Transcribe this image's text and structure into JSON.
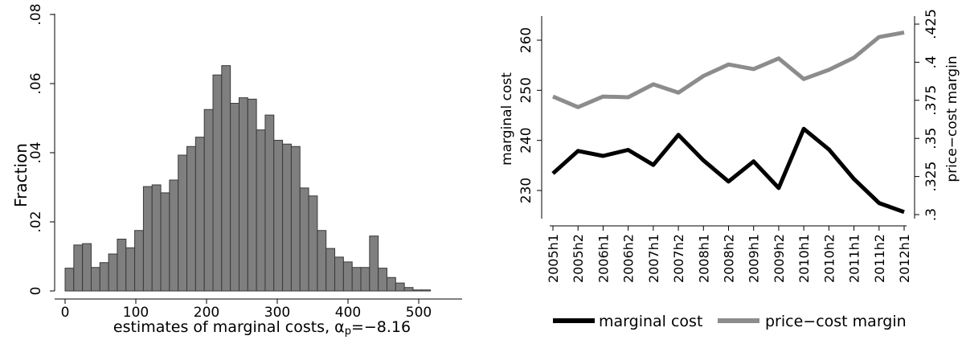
{
  "chart_data": [
    {
      "type": "bar",
      "ylabel": "Fraction",
      "xlabel": "estimates of marginal costs, α",
      "xlabel_subscript": "p",
      "xlabel_suffix": "=−8.16",
      "xlim": [
        -10,
        545
      ],
      "ylim": [
        0,
        0.08
      ],
      "xticks": [
        "0",
        "100",
        "200",
        "300",
        "400",
        "500"
      ],
      "yticks": [
        "0",
        ".02",
        ".04",
        ".06",
        ".08"
      ],
      "bin_width": 12.3,
      "bin_start": 0,
      "values": [
        0.0066,
        0.0133,
        0.0137,
        0.0068,
        0.0082,
        0.0107,
        0.015,
        0.0125,
        0.0175,
        0.0302,
        0.0307,
        0.0284,
        0.0321,
        0.0393,
        0.0418,
        0.0445,
        0.0525,
        0.0625,
        0.0652,
        0.0543,
        0.0559,
        0.0555,
        0.0466,
        0.0509,
        0.0436,
        0.0425,
        0.0418,
        0.0298,
        0.0275,
        0.0175,
        0.0123,
        0.0098,
        0.0084,
        0.0068,
        0.0068,
        0.0159,
        0.0066,
        0.0039,
        0.0023,
        0.001,
        0.0003,
        0.0003,
        0.0,
        0.0
      ]
    },
    {
      "type": "line",
      "categories": [
        "2005h1",
        "2005h2",
        "2006h1",
        "2006h2",
        "2007h1",
        "2007h2",
        "2008h1",
        "2008h2",
        "2009h1",
        "2009h2",
        "2010h1",
        "2010h2",
        "2011h1",
        "2011h2",
        "2012h1"
      ],
      "left_ylabel": "marginal cost",
      "right_ylabel": "price−cost margin",
      "left_ylim": [
        224,
        261.5
      ],
      "right_ylim": [
        0.2965,
        0.428
      ],
      "left_yticks": [
        "230",
        "240",
        "250",
        "260"
      ],
      "right_yticks": [
        ".3",
        ".325",
        ".35",
        ".375",
        ".4",
        ".425"
      ],
      "series": [
        {
          "name": "marginal cost",
          "axis": "left",
          "color": "#000000",
          "values": [
            233.4,
            237.9,
            236.9,
            238.1,
            235.1,
            241.1,
            236.0,
            231.8,
            235.8,
            230.5,
            242.3,
            238.2,
            232.3,
            227.5,
            225.7
          ]
        },
        {
          "name": "price−cost margin",
          "axis": "right",
          "color": "#8c8c8c",
          "values": [
            0.3775,
            0.3705,
            0.3775,
            0.377,
            0.3855,
            0.38,
            0.391,
            0.3985,
            0.3955,
            0.4025,
            0.389,
            0.395,
            0.403,
            0.4165,
            0.4195
          ]
        }
      ]
    }
  ]
}
